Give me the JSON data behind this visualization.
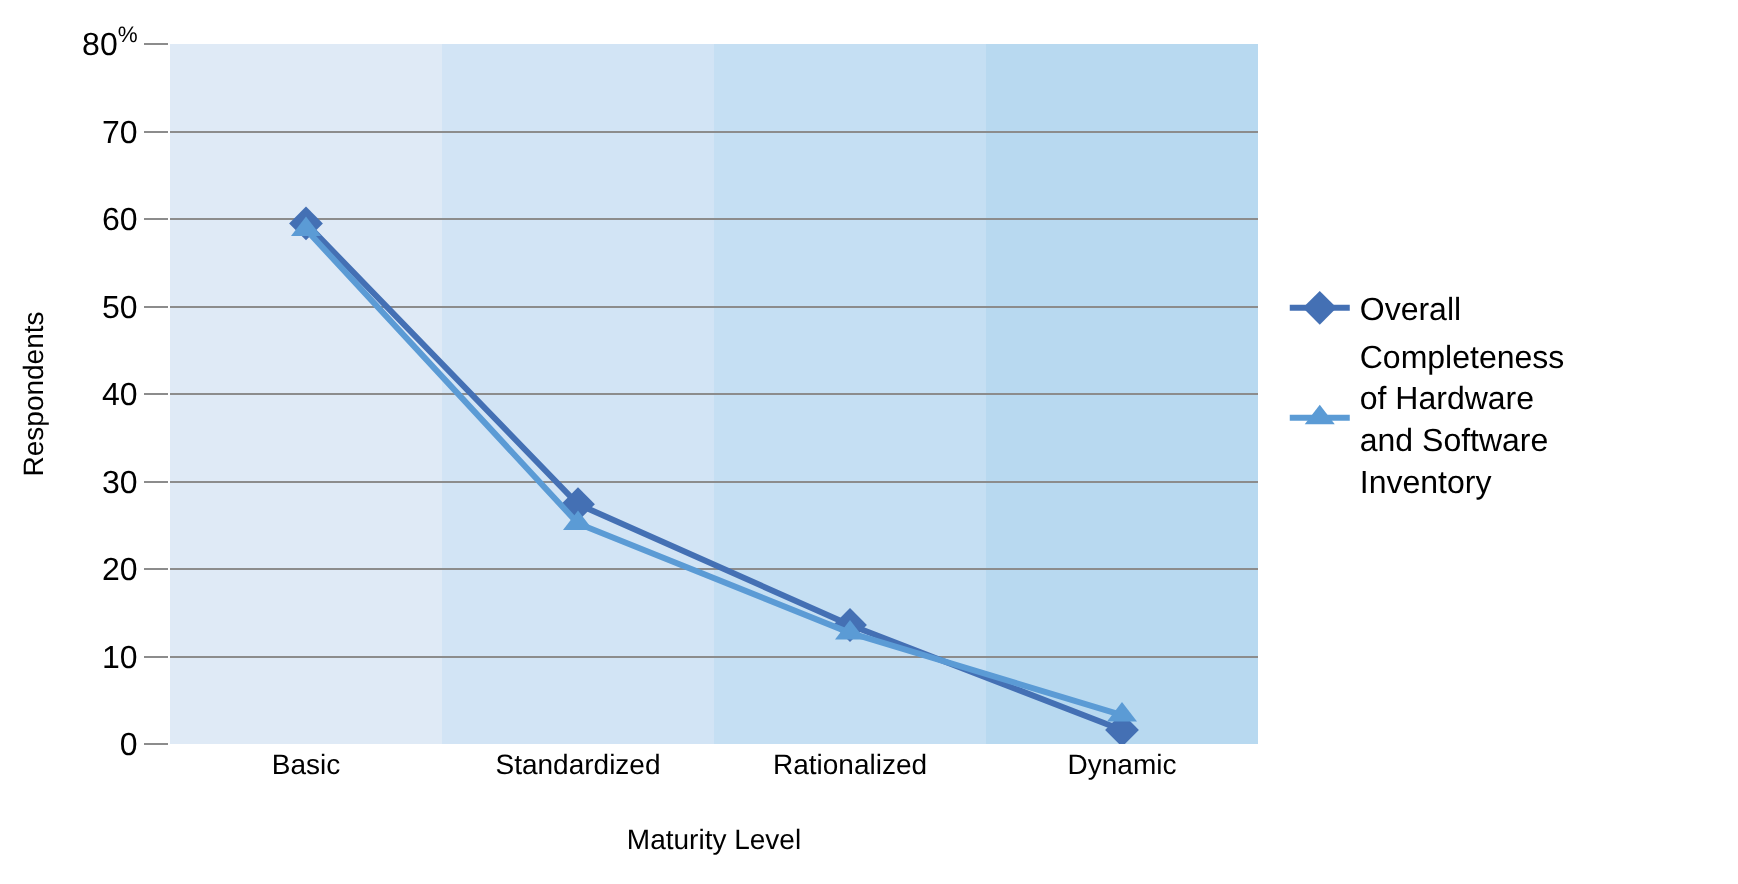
{
  "chart_data": {
    "type": "line",
    "xlabel": "Maturity Level",
    "ylabel": "Respondents",
    "categories": [
      "Basic",
      "Standardized",
      "Rationalized",
      "Dynamic"
    ],
    "series": [
      {
        "name": "Overall",
        "color": "#4470b4",
        "marker": "diamond",
        "values": [
          59.5,
          27.4,
          13.6,
          1.6
        ]
      },
      {
        "name": "Completeness of Hardware and Software Inventory",
        "color": "#5b9bd5",
        "marker": "triangle",
        "values": [
          58.8,
          25.2,
          12.7,
          3.3
        ]
      }
    ],
    "ylim": [
      0,
      80
    ],
    "yticks": [
      0,
      10,
      20,
      30,
      40,
      50,
      60,
      70,
      {
        "value": 80,
        "label": "80$^{%}$"
      }
    ],
    "bands": [
      {
        "axis": "x",
        "from": "Basic",
        "to": "Basic",
        "color": "#dfeaf6"
      },
      {
        "axis": "x",
        "from": "Standardized",
        "to": "Standardized",
        "color": "#d2e4f5"
      },
      {
        "axis": "x",
        "from": "Rationalized",
        "to": "Rationalized",
        "color": "#c5dff3"
      },
      {
        "axis": "x",
        "from": "Dynamic",
        "to": "Dynamic",
        "color": "#b8d9f0"
      }
    ],
    "grid": "y",
    "legend": "right"
  }
}
